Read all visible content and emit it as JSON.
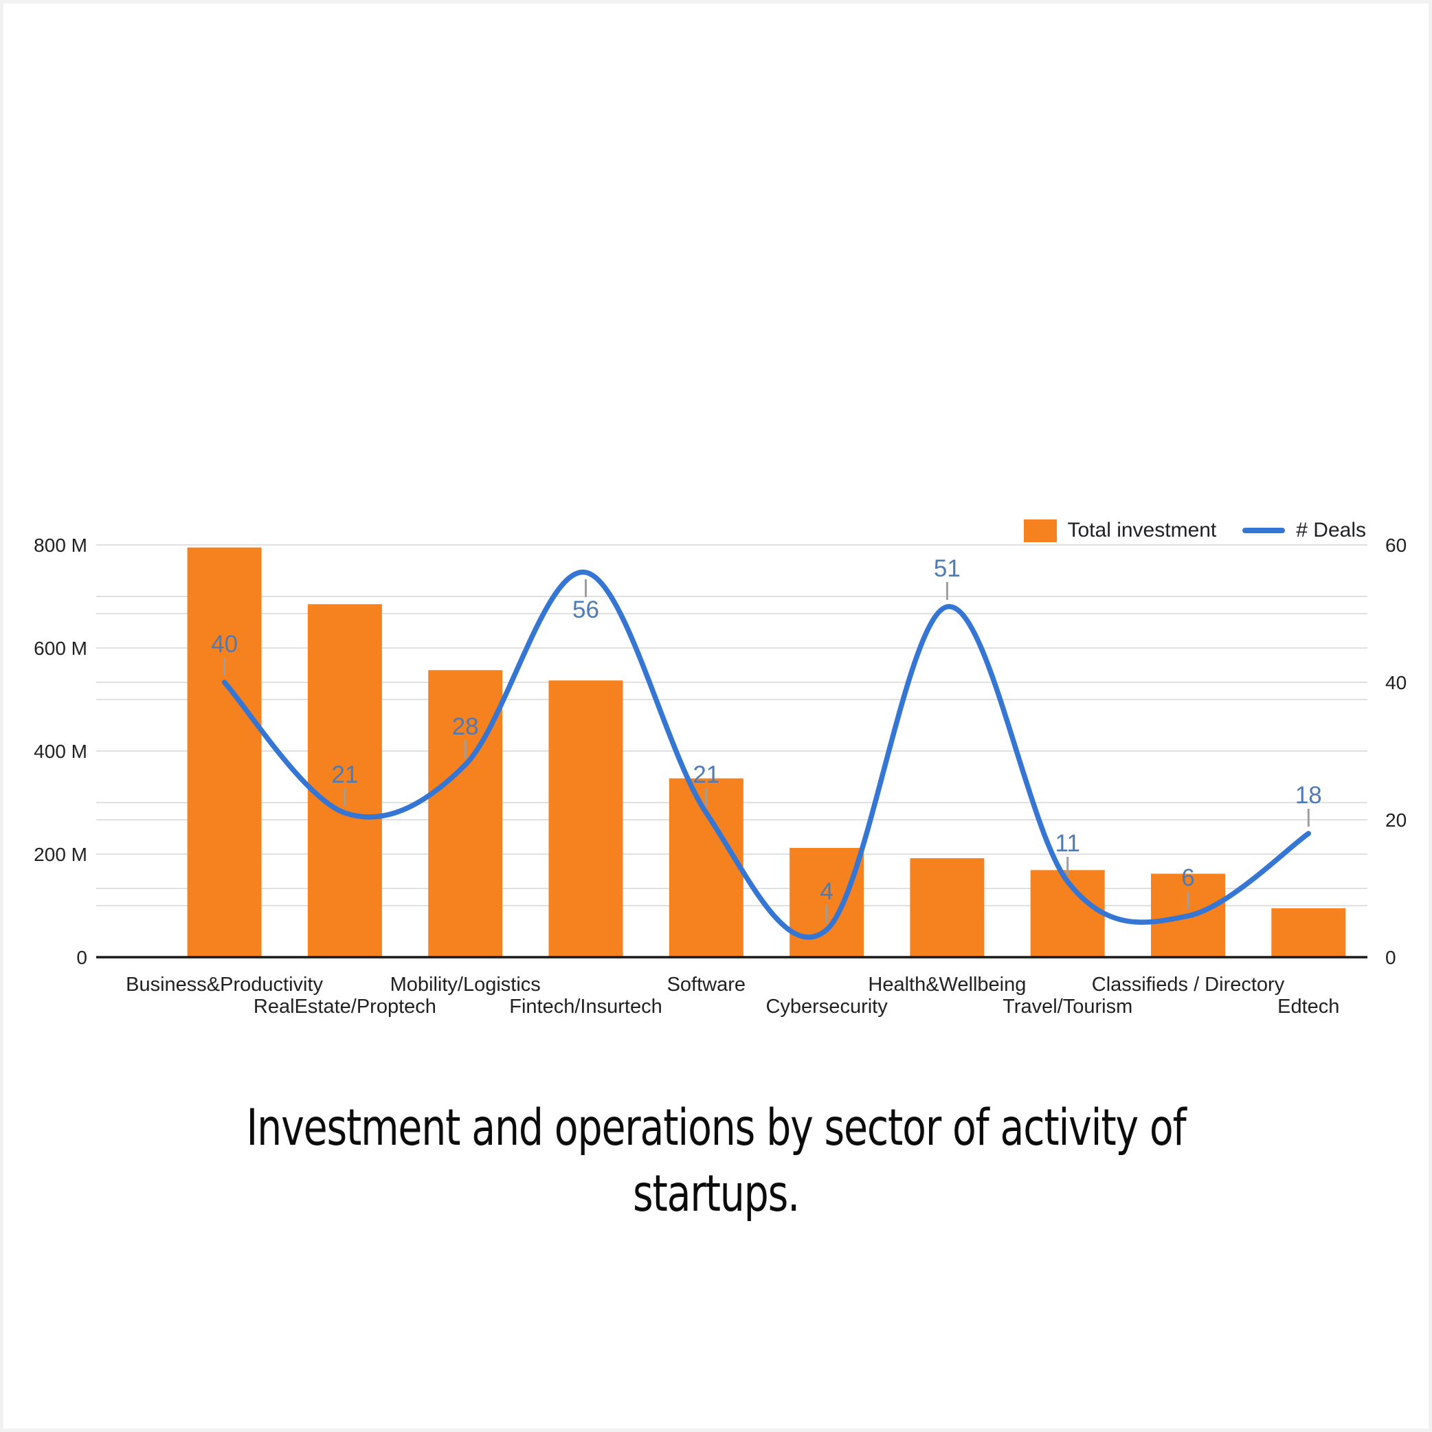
{
  "page": {
    "background": "#f1f1f1",
    "card_background": "#ffffff"
  },
  "legend": {
    "items": [
      {
        "label": "Total investment",
        "type": "swatch",
        "color": "#f6821f"
      },
      {
        "label": "# Deals",
        "type": "line",
        "color": "#3575d3"
      }
    ]
  },
  "title": {
    "text": "Investment and operations by sector of activity of startups."
  },
  "chart_data": {
    "type": "bar",
    "subtype": "combo-bar-line-dual-axis",
    "categories": [
      "Business&Productivity",
      "RealEstate/Proptech",
      "Mobility/Logistics",
      "Fintech/Insurtech",
      "Software",
      "Cybersecurity",
      "Health&Wellbeing",
      "Travel/Tourism",
      "Classifieds / Directory",
      "Edtech"
    ],
    "series": [
      {
        "name": "Total investment",
        "type": "bar",
        "axis": "left",
        "color": "#f6821f",
        "unit": "M",
        "values": [
          795,
          685,
          557,
          537,
          347,
          212,
          192,
          169,
          162,
          95
        ]
      },
      {
        "name": "# Deals",
        "type": "line",
        "axis": "right",
        "color": "#3575d3",
        "values": [
          40,
          21,
          28,
          56,
          21,
          4,
          51,
          11,
          6,
          18
        ]
      }
    ],
    "left_axis": {
      "min": 0,
      "max": 800,
      "tick_step": 200,
      "grid_step": 100,
      "tick_labels": [
        "0",
        "200 M",
        "400 M",
        "600 M",
        "800 M"
      ]
    },
    "right_axis": {
      "min": 0,
      "max": 60,
      "tick_step": 20,
      "grid_step": 10,
      "tick_labels": [
        "0",
        "20",
        "40",
        "60"
      ]
    },
    "grid": true,
    "legend_position": "top-right",
    "data_label_color": "#4e7ab5",
    "data_label_tick_color": "#9e9e9e",
    "axis_label_color": "#212121",
    "gridline_color": "#e0e0e0",
    "baseline_color": "#1a1a1a",
    "label_below_point_indices": [
      3
    ]
  }
}
